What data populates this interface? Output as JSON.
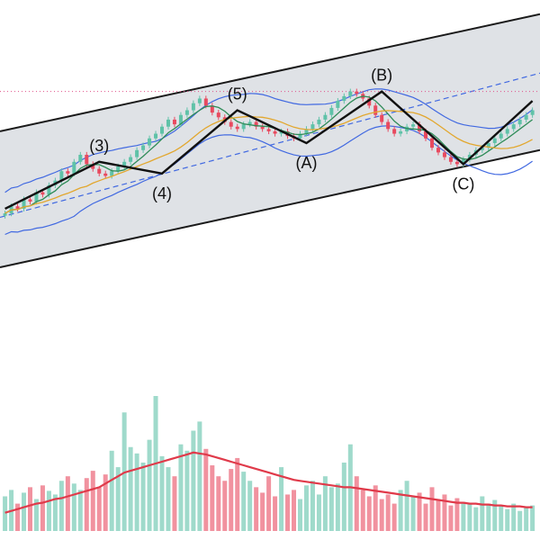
{
  "chart_data": {
    "type": "candlestick",
    "title": "",
    "xlabel": "",
    "ylabel": "",
    "grid": false,
    "legend": "none",
    "colors": {
      "up": "#5fc2a8",
      "down": "#e84a5f",
      "channel_fill": "#dfe2e6",
      "channel_line": "#1a1a1a",
      "bollinger": "#4169e1",
      "ma_fast": "#2e8b57",
      "ma_mid": "#e2a72e",
      "ma_slow": "#e0a030",
      "volume_ma": "#e03a4a",
      "ref_line": "#e0508a",
      "wave": "#111111"
    },
    "ylim": [
      0,
      100
    ],
    "closes": [
      28,
      31,
      30,
      34,
      33,
      37,
      36,
      40,
      42,
      46,
      45,
      50,
      53,
      49,
      47,
      45,
      44,
      46,
      48,
      50,
      52,
      55,
      57,
      60,
      62,
      65,
      68,
      66,
      70,
      72,
      75,
      77,
      74,
      71,
      69,
      67,
      65,
      64,
      66,
      67,
      65,
      64,
      63,
      62,
      63,
      61,
      60,
      62,
      64,
      66,
      68,
      70,
      73,
      76,
      78,
      80,
      79,
      77,
      74,
      70,
      67,
      64,
      62,
      63,
      65,
      66,
      63,
      60,
      56,
      54,
      52,
      50,
      49,
      51,
      53,
      55,
      56,
      58,
      60,
      62,
      64,
      66,
      68,
      70,
      72
    ],
    "volumes": [
      38,
      45,
      30,
      42,
      48,
      35,
      50,
      44,
      40,
      55,
      60,
      52,
      45,
      58,
      66,
      48,
      62,
      88,
      70,
      130,
      92,
      85,
      75,
      100,
      148,
      82,
      70,
      60,
      95,
      88,
      110,
      120,
      90,
      72,
      60,
      55,
      68,
      80,
      65,
      55,
      48,
      42,
      60,
      38,
      70,
      40,
      45,
      35,
      50,
      55,
      40,
      60,
      48,
      52,
      75,
      95,
      60,
      45,
      38,
      50,
      35,
      40,
      30,
      45,
      55,
      38,
      42,
      30,
      48,
      35,
      40,
      28,
      36,
      32,
      30,
      26,
      38,
      30,
      34,
      28,
      24,
      30,
      22,
      26,
      28
    ],
    "volume_ma": [
      20,
      22,
      24,
      26,
      28,
      30,
      31,
      33,
      35,
      36,
      38,
      40,
      42,
      44,
      46,
      48,
      52,
      56,
      60,
      64,
      66,
      68,
      70,
      72,
      74,
      76,
      78,
      80,
      82,
      84,
      86,
      85,
      84,
      82,
      80,
      78,
      76,
      74,
      72,
      70,
      68,
      66,
      64,
      62,
      60,
      58,
      56,
      55,
      54,
      53,
      52,
      51,
      50,
      49,
      48,
      48,
      47,
      46,
      45,
      44,
      43,
      42,
      41,
      40,
      39,
      38,
      37,
      36,
      35,
      34,
      33,
      32,
      31,
      31,
      30,
      30,
      29,
      29,
      28,
      28,
      27,
      27,
      27,
      26,
      26
    ],
    "ref_level": 80,
    "channel": {
      "upper_start": 63,
      "upper_end": 113,
      "lower_start": 5,
      "lower_end": 55
    },
    "wave_points": [
      {
        "label": "(3)",
        "i": 15,
        "v": 50
      },
      {
        "label": "(4)",
        "i": 25,
        "v": 45
      },
      {
        "label": "(5)",
        "i": 37,
        "v": 72
      },
      {
        "label": "(A)",
        "i": 48,
        "v": 58
      },
      {
        "label": "(B)",
        "i": 60,
        "v": 80
      },
      {
        "label": "(C)",
        "i": 73,
        "v": 49
      }
    ]
  }
}
